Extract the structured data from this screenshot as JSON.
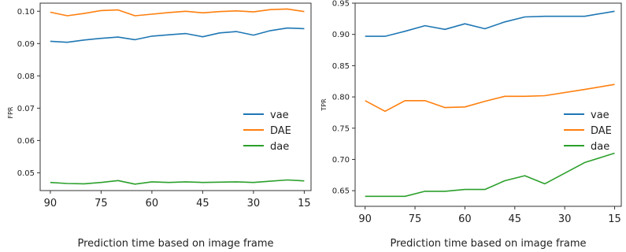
{
  "chart_data": [
    {
      "type": "line",
      "ylabel": "FPR",
      "xlabel": "Prediction time based on image frame",
      "x_reversed": true,
      "xlim": [
        93,
        13
      ],
      "ylim": [
        0.0445,
        0.1025
      ],
      "xticks": [
        90,
        75,
        60,
        45,
        30,
        15
      ],
      "yticks": [
        0.05,
        0.06,
        0.07,
        0.08,
        0.09,
        0.1
      ],
      "ytick_labels": [
        "0.05",
        "0.06",
        "0.07",
        "0.08",
        "0.09",
        "0.10"
      ],
      "legend_position": "center-right",
      "x": [
        90,
        85,
        80,
        75,
        70,
        65,
        60,
        55,
        50,
        45,
        40,
        35,
        30,
        25,
        20,
        15
      ],
      "series": [
        {
          "name": "vae",
          "color": "#1f77b4",
          "values": [
            0.0907,
            0.0904,
            0.0911,
            0.0916,
            0.092,
            0.0912,
            0.0923,
            0.0927,
            0.0931,
            0.0921,
            0.0933,
            0.0937,
            0.0926,
            0.094,
            0.0948,
            0.0946
          ]
        },
        {
          "name": "DAE",
          "color": "#ff7f0e",
          "values": [
            0.0997,
            0.0986,
            0.0993,
            0.1002,
            0.1004,
            0.0986,
            0.0991,
            0.0996,
            0.1,
            0.0995,
            0.0999,
            0.1001,
            0.0998,
            0.1005,
            0.1007,
            0.0999
          ]
        },
        {
          "name": "dae",
          "color": "#2ca02c",
          "values": [
            0.047,
            0.0467,
            0.0466,
            0.047,
            0.0476,
            0.0465,
            0.0472,
            0.047,
            0.0472,
            0.047,
            0.0471,
            0.0472,
            0.047,
            0.0474,
            0.0478,
            0.0475
          ]
        }
      ]
    },
    {
      "type": "line",
      "ylabel": "TPR",
      "xlabel": "Prediction time based on image frame",
      "x_reversed": true,
      "xlim": [
        93,
        13
      ],
      "ylim": [
        0.625,
        0.95
      ],
      "xticks": [
        90,
        75,
        60,
        45,
        30,
        15
      ],
      "yticks": [
        0.65,
        0.7,
        0.75,
        0.8,
        0.85,
        0.9,
        0.95
      ],
      "ytick_labels": [
        "0.65",
        "0.70",
        "0.75",
        "0.80",
        "0.85",
        "0.90",
        "0.95"
      ],
      "legend_position": "center-right",
      "x": [
        90,
        80,
        70,
        60,
        50,
        40,
        30,
        20,
        15
      ],
      "series": [
        {
          "name": "vae",
          "color": "#1f77b4",
          "values": [
            0.897,
            0.897,
            0.905,
            0.914,
            0.908,
            0.917,
            0.909,
            0.92,
            0.928,
            0.929,
            0.929,
            0.937
          ],
          "x": [
            90,
            84,
            78,
            72,
            66,
            60,
            54,
            48,
            42,
            36,
            24,
            15
          ]
        },
        {
          "name": "DAE",
          "color": "#ff7f0e",
          "values": [
            0.794,
            0.777,
            0.794,
            0.794,
            0.783,
            0.784,
            0.793,
            0.801,
            0.801,
            0.802,
            0.812,
            0.82
          ],
          "x": [
            90,
            84,
            78,
            72,
            66,
            60,
            54,
            48,
            42,
            36,
            24,
            15
          ]
        },
        {
          "name": "dae",
          "color": "#2ca02c",
          "values": [
            0.641,
            0.641,
            0.641,
            0.649,
            0.649,
            0.652,
            0.652,
            0.666,
            0.674,
            0.661,
            0.695,
            0.71
          ],
          "x": [
            90,
            84,
            78,
            72,
            66,
            60,
            54,
            48,
            42,
            36,
            24,
            15
          ]
        }
      ]
    }
  ]
}
